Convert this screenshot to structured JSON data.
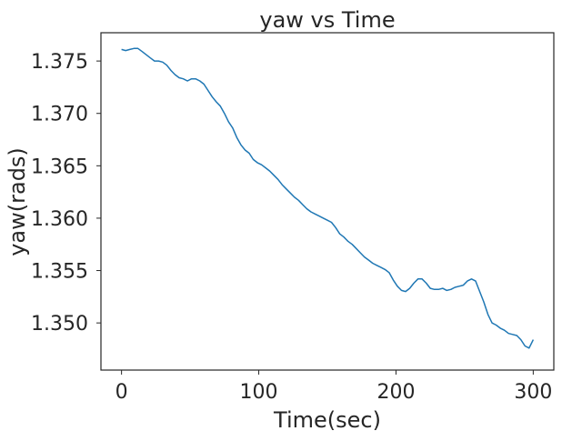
{
  "chart_data": {
    "type": "line",
    "title": "yaw vs Time",
    "xlabel": "Time(sec)",
    "ylabel": "yaw(rads)",
    "xlim": [
      -15,
      315
    ],
    "ylim": [
      1.3455,
      1.3777
    ],
    "xticks": [
      0,
      100,
      200,
      300
    ],
    "xtick_labels": [
      "0",
      "100",
      "200",
      "300"
    ],
    "yticks": [
      1.35,
      1.355,
      1.36,
      1.365,
      1.37,
      1.375
    ],
    "ytick_labels": [
      "1.350",
      "1.355",
      "1.360",
      "1.365",
      "1.370",
      "1.375"
    ],
    "grid": false,
    "legend": "none",
    "series": [
      {
        "color": "#1f77b4",
        "x": [
          0,
          3,
          6,
          9,
          12,
          15,
          18,
          21,
          24,
          27,
          30,
          33,
          36,
          39,
          42,
          45,
          48,
          51,
          54,
          57,
          60,
          63,
          66,
          69,
          72,
          75,
          78,
          81,
          84,
          87,
          90,
          93,
          96,
          99,
          102,
          105,
          108,
          111,
          114,
          117,
          120,
          123,
          126,
          129,
          132,
          135,
          138,
          141,
          144,
          147,
          150,
          153,
          156,
          159,
          162,
          165,
          168,
          171,
          174,
          177,
          180,
          183,
          186,
          189,
          192,
          195,
          198,
          201,
          204,
          207,
          210,
          213,
          216,
          219,
          222,
          225,
          228,
          231,
          234,
          237,
          240,
          243,
          246,
          249,
          252,
          255,
          258,
          261,
          264,
          267,
          270,
          273,
          276,
          279,
          282,
          285,
          288,
          291,
          294,
          297,
          300
        ],
        "y": [
          1.3761,
          1.376,
          1.3761,
          1.3762,
          1.3762,
          1.3759,
          1.3756,
          1.3753,
          1.375,
          1.375,
          1.3749,
          1.3746,
          1.3741,
          1.3737,
          1.3734,
          1.3733,
          1.3731,
          1.3733,
          1.3733,
          1.3731,
          1.3728,
          1.3722,
          1.3716,
          1.3711,
          1.3707,
          1.37,
          1.3692,
          1.3686,
          1.3677,
          1.367,
          1.3665,
          1.3662,
          1.3656,
          1.3653,
          1.3651,
          1.3648,
          1.3645,
          1.3641,
          1.3637,
          1.3632,
          1.3628,
          1.3624,
          1.362,
          1.3617,
          1.3613,
          1.3609,
          1.3606,
          1.3604,
          1.3602,
          1.36,
          1.3598,
          1.3596,
          1.3591,
          1.3585,
          1.3582,
          1.3578,
          1.3575,
          1.3571,
          1.3567,
          1.3563,
          1.356,
          1.3557,
          1.3555,
          1.3553,
          1.3551,
          1.3548,
          1.3541,
          1.3535,
          1.3531,
          1.353,
          1.3533,
          1.3538,
          1.3542,
          1.3542,
          1.3538,
          1.3533,
          1.3532,
          1.3532,
          1.3533,
          1.3531,
          1.3532,
          1.3534,
          1.3535,
          1.3536,
          1.354,
          1.3542,
          1.354,
          1.353,
          1.352,
          1.3508,
          1.35,
          1.3498,
          1.3495,
          1.3493,
          1.349,
          1.3489,
          1.3488,
          1.3484,
          1.3478,
          1.3476,
          1.3484
        ]
      }
    ]
  }
}
